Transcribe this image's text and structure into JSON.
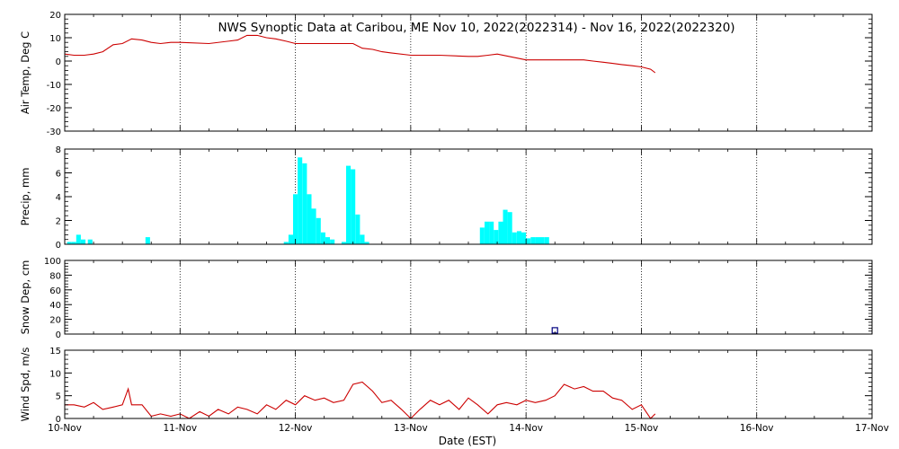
{
  "title": "NWS Synoptic Data at Caribou, ME   Nov 10, 2022(2022314) - Nov 16, 2022(2022320)",
  "xlabel": "Date (EST)",
  "x_tick_labels": [
    "10-Nov",
    "11-Nov",
    "12-Nov",
    "13-Nov",
    "14-Nov",
    "15-Nov",
    "16-Nov",
    "17-Nov"
  ],
  "colors": {
    "temperature": "#cc0000",
    "wind": "#cc0000",
    "precip": "#00ffff",
    "snow": "#000080",
    "axes": "#000000",
    "grid": "#000000"
  },
  "chart_data": [
    {
      "type": "line",
      "ylabel": "Air Temp, Deg C",
      "xlim_days": [
        0,
        7
      ],
      "ylim": [
        -30,
        20
      ],
      "y_ticks": [
        -30,
        -20,
        -10,
        0,
        10,
        20
      ],
      "grid": true,
      "x_days": [
        0,
        0.08,
        0.17,
        0.25,
        0.33,
        0.42,
        0.5,
        0.58,
        0.67,
        0.75,
        0.83,
        0.92,
        1.0,
        1.25,
        1.5,
        1.58,
        1.67,
        1.75,
        1.83,
        1.92,
        2.0,
        2.25,
        2.5,
        2.58,
        2.67,
        2.75,
        2.83,
        3.0,
        3.25,
        3.5,
        3.58,
        3.67,
        3.75,
        4.0,
        4.25,
        4.5,
        4.58,
        4.67,
        4.75,
        4.83,
        4.92,
        5.0,
        5.08,
        5.12
      ],
      "values": [
        3,
        2.5,
        2.5,
        3,
        4,
        7,
        7.5,
        9.5,
        9,
        8,
        7.5,
        8,
        8,
        7.5,
        9,
        11,
        11,
        10,
        9.5,
        8.5,
        7.5,
        7.5,
        7.5,
        5.5,
        5,
        4,
        3.5,
        2.5,
        2.5,
        2,
        2,
        2.5,
        3,
        0.5,
        0.5,
        0.5,
        0,
        -0.5,
        -1,
        -1.5,
        -2,
        -2.5,
        -3.5,
        -5
      ]
    },
    {
      "type": "bar",
      "ylabel": "Precip, mm",
      "xlim_days": [
        0,
        7
      ],
      "ylim": [
        0,
        8
      ],
      "y_ticks": [
        0,
        2,
        4,
        6,
        8
      ],
      "grid": true,
      "x_days": [
        0.04,
        0.08,
        0.12,
        0.16,
        0.22,
        0.72,
        1.92,
        1.96,
        2.0,
        2.04,
        2.08,
        2.12,
        2.16,
        2.2,
        2.24,
        2.28,
        2.32,
        2.42,
        2.46,
        2.5,
        2.54,
        2.58,
        2.62,
        3.62,
        3.66,
        3.7,
        3.74,
        3.78,
        3.82,
        3.86,
        3.9,
        3.94,
        3.98,
        4.02,
        4.06,
        4.1,
        4.14,
        4.18
      ],
      "values": [
        0.2,
        0.2,
        0.8,
        0.4,
        0.4,
        0.6,
        0.2,
        0.8,
        4.2,
        7.3,
        6.8,
        4.2,
        3.0,
        2.2,
        1.0,
        0.6,
        0.4,
        0.2,
        6.6,
        6.3,
        2.5,
        0.8,
        0.2,
        1.4,
        1.9,
        1.9,
        1.2,
        1.9,
        2.9,
        2.7,
        1.0,
        1.1,
        1.0,
        0.5,
        0.6,
        0.6,
        0.6,
        0.6
      ]
    },
    {
      "type": "scatter",
      "ylabel": "Snow Dep, cm",
      "xlim_days": [
        0,
        7
      ],
      "ylim": [
        0,
        100
      ],
      "y_ticks": [
        0,
        20,
        40,
        60,
        80,
        100
      ],
      "grid": true,
      "x_days": [
        4.25
      ],
      "values": [
        5
      ]
    },
    {
      "type": "line",
      "ylabel": "Wind Spd, m/s",
      "xlim_days": [
        0,
        7
      ],
      "ylim": [
        0,
        15
      ],
      "y_ticks": [
        0,
        5,
        10,
        15
      ],
      "grid": true,
      "x_days": [
        0,
        0.08,
        0.17,
        0.25,
        0.33,
        0.42,
        0.5,
        0.55,
        0.58,
        0.67,
        0.75,
        0.83,
        0.92,
        1.0,
        1.08,
        1.17,
        1.25,
        1.33,
        1.42,
        1.5,
        1.58,
        1.67,
        1.75,
        1.83,
        1.92,
        2.0,
        2.08,
        2.17,
        2.25,
        2.33,
        2.42,
        2.5,
        2.58,
        2.67,
        2.75,
        2.83,
        2.92,
        3.0,
        3.08,
        3.17,
        3.25,
        3.33,
        3.42,
        3.5,
        3.58,
        3.67,
        3.75,
        3.83,
        3.92,
        4.0,
        4.08,
        4.17,
        4.25,
        4.33,
        4.42,
        4.5,
        4.58,
        4.67,
        4.75,
        4.83,
        4.92,
        5.0,
        5.08,
        5.12
      ],
      "values": [
        3,
        3,
        2.5,
        3.5,
        2,
        2.5,
        3,
        6.5,
        3,
        3,
        0.5,
        1,
        0.5,
        1,
        0,
        1.5,
        0.5,
        2,
        1,
        2.5,
        2,
        1,
        3,
        2,
        4,
        3,
        5,
        4,
        4.5,
        3.5,
        4,
        7.5,
        8,
        6,
        3.5,
        4,
        2,
        0,
        2,
        4,
        3,
        4,
        2,
        4.5,
        3,
        1,
        3,
        3.5,
        3,
        4,
        3.5,
        4,
        5,
        7.5,
        6.5,
        7,
        6,
        6,
        4.5,
        4,
        2,
        3,
        0,
        1
      ]
    }
  ]
}
